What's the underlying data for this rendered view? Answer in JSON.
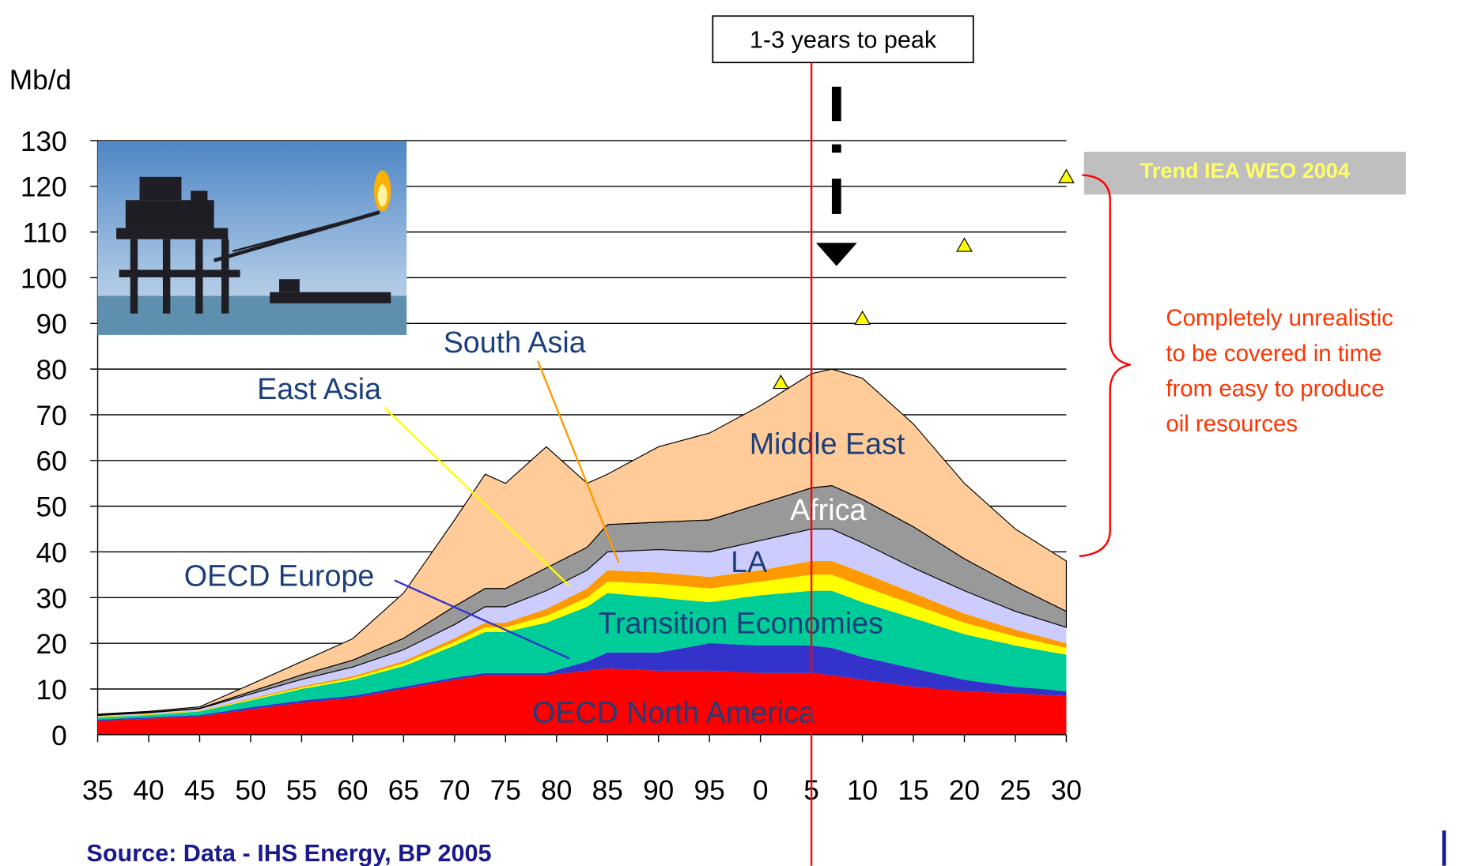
{
  "chart_data": {
    "type": "stacked-area",
    "y_label": "Mb/d",
    "x": [
      1935,
      1940,
      1945,
      1950,
      1955,
      1960,
      1965,
      1970,
      1973,
      1975,
      1979,
      1983,
      1985,
      1990,
      1995,
      2000,
      2005,
      2007,
      2010,
      2015,
      2020,
      2025,
      2030
    ],
    "xlim": [
      1935,
      2030
    ],
    "xticks": [
      {
        "value": 1935,
        "label": "35"
      },
      {
        "value": 1940,
        "label": "40"
      },
      {
        "value": 1945,
        "label": "45"
      },
      {
        "value": 1950,
        "label": "50"
      },
      {
        "value": 1955,
        "label": "55"
      },
      {
        "value": 1960,
        "label": "60"
      },
      {
        "value": 1965,
        "label": "65"
      },
      {
        "value": 1970,
        "label": "70"
      },
      {
        "value": 1975,
        "label": "75"
      },
      {
        "value": 1980,
        "label": "80"
      },
      {
        "value": 1985,
        "label": "85"
      },
      {
        "value": 1990,
        "label": "90"
      },
      {
        "value": 1995,
        "label": "95"
      },
      {
        "value": 2000,
        "label": "0"
      },
      {
        "value": 2005,
        "label": "5"
      },
      {
        "value": 2010,
        "label": "10"
      },
      {
        "value": 2015,
        "label": "15"
      },
      {
        "value": 2020,
        "label": "20"
      },
      {
        "value": 2025,
        "label": "25"
      },
      {
        "value": 2030,
        "label": "30"
      }
    ],
    "ylim": [
      0,
      130
    ],
    "yticks": [
      0,
      10,
      20,
      30,
      40,
      50,
      60,
      70,
      80,
      90,
      100,
      110,
      120,
      130
    ],
    "grid": true,
    "series": [
      {
        "name": "OECD North America",
        "color": "#ff0000",
        "values": [
          3,
          3.5,
          4,
          5.5,
          7,
          8,
          10,
          12,
          13,
          13,
          13,
          14,
          14.5,
          14,
          14,
          13.5,
          13.5,
          13,
          12,
          10.5,
          9.5,
          9,
          8.5
        ]
      },
      {
        "name": "OECD Europe",
        "color": "#3333cc",
        "values": [
          0.3,
          0.3,
          0.3,
          0.5,
          0.5,
          0.5,
          0.5,
          0.5,
          0.5,
          0.5,
          0.5,
          2,
          3.5,
          4,
          6,
          6,
          6,
          6,
          5,
          4,
          2.5,
          1.5,
          1
        ]
      },
      {
        "name": "Transition Economies",
        "color": "#00cc99",
        "values": [
          0.5,
          0.5,
          0.8,
          1.5,
          2.5,
          3.5,
          4.5,
          7,
          9,
          9,
          11,
          12,
          13,
          12,
          9,
          11,
          12,
          12.5,
          12,
          11,
          10,
          9,
          8
        ]
      },
      {
        "name": "East Asia",
        "color": "#ffff00",
        "values": [
          0.1,
          0.1,
          0.1,
          0.2,
          0.3,
          0.4,
          0.6,
          0.8,
          1,
          1,
          1.5,
          2,
          2.5,
          3,
          3,
          3,
          3.5,
          3.5,
          3.5,
          3,
          2.5,
          2,
          1.5
        ]
      },
      {
        "name": "South Asia",
        "color": "#ff9900",
        "values": [
          0.1,
          0.1,
          0.1,
          0.2,
          0.3,
          0.4,
          0.5,
          0.8,
          1,
          1,
          1.5,
          2,
          2.5,
          2.5,
          2.5,
          2.5,
          3,
          3,
          3,
          2.5,
          2,
          1.5,
          1
        ]
      },
      {
        "name": "LA",
        "color": "#ccccff",
        "values": [
          0.2,
          0.3,
          0.4,
          1,
          1.5,
          2,
          2.5,
          3,
          3.5,
          3.5,
          4,
          4,
          4,
          5,
          5.5,
          6.5,
          7,
          7,
          6.5,
          5.5,
          5,
          4,
          3.5
        ]
      },
      {
        "name": "Africa",
        "color": "#999999",
        "values": [
          0.1,
          0.1,
          0.1,
          0.5,
          1,
          1.5,
          2.5,
          4,
          4,
          4,
          5,
          5,
          6,
          6,
          7,
          8,
          9,
          9.5,
          9.5,
          9,
          7,
          5.5,
          3.5
        ]
      },
      {
        "name": "Middle East",
        "color": "#ffcc99",
        "values": [
          0.2,
          0.2,
          0.3,
          1.6,
          2.9,
          4.7,
          9.9,
          18.9,
          25,
          23,
          26.5,
          14,
          11,
          16.5,
          19,
          21.5,
          25,
          25.5,
          26.5,
          22.5,
          16.5,
          12.5,
          11
        ]
      }
    ],
    "trend": {
      "name": "Trend IEA WEO 2004",
      "color": "#ffff00",
      "x": [
        2002,
        2010,
        2020,
        2030
      ],
      "values": [
        77,
        91,
        107,
        122
      ]
    },
    "peak_line_x": 2005,
    "peak_label": "1-3 years to peak",
    "note": [
      "Completely unrealistic",
      "to be covered in time",
      "from easy to produce",
      "oil resources"
    ],
    "source": "Source:   Data - IHS Energy, BP 2005"
  }
}
